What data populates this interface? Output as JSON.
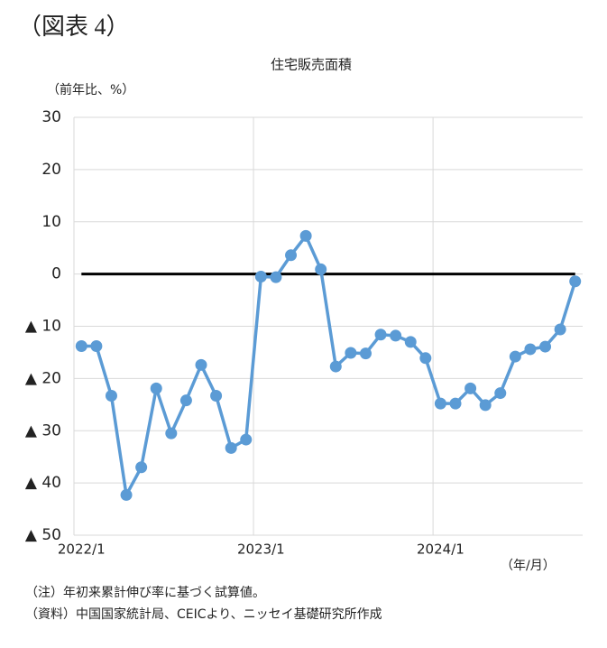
{
  "header": {
    "label": "（図表 4）"
  },
  "chart_data": {
    "type": "line",
    "title": "住宅販売面積",
    "y_label": "（前年比、%）",
    "x_label": "（年/月）",
    "categories": [
      "2022/1",
      null,
      null,
      null,
      null,
      null,
      null,
      null,
      null,
      null,
      null,
      null,
      "2023/1",
      null,
      null,
      null,
      null,
      null,
      null,
      null,
      null,
      null,
      null,
      null,
      "2024/1",
      null,
      null,
      null,
      null,
      null,
      null,
      null,
      null,
      null
    ],
    "series": [
      {
        "name": "住宅販売面積",
        "color": "#5b9bd5",
        "values": [
          -13.8,
          -13.8,
          -23.3,
          -42.3,
          -37,
          -21.9,
          -30.5,
          -24.2,
          -17.4,
          -23.3,
          -33.3,
          -31.7,
          -0.5,
          -0.6,
          3.6,
          7.3,
          0.9,
          -17.7,
          -15.1,
          -15.2,
          -11.6,
          -11.8,
          -13.0,
          -16.1,
          -24.8,
          -24.8,
          -21.9,
          -25.1,
          -22.8,
          -15.8,
          -14.4,
          -13.9,
          -10.6,
          -1.4
        ]
      }
    ],
    "ylim": [
      -50,
      30
    ],
    "yticks": [
      {
        "value": -50,
        "label": "▲ 50"
      },
      {
        "value": -40,
        "label": "▲ 40"
      },
      {
        "value": -30,
        "label": "▲ 30"
      },
      {
        "value": -20,
        "label": "▲ 20"
      },
      {
        "value": -10,
        "label": "▲ 10"
      },
      0,
      10,
      20,
      30
    ],
    "grid": true,
    "zero_line": true
  },
  "notes": [
    "（注）年初来累計伸び率に基づく試算値。",
    "（資料）中国国家統計局、CEICより、ニッセイ基礎研究所作成"
  ]
}
